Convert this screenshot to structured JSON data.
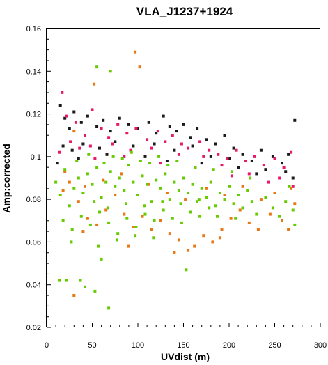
{
  "chart_data": {
    "type": "scatter",
    "title": "VLA_J1237+1924",
    "xlabel": "UVdist (m)",
    "ylabel": "Amp:corrected",
    "xlim": [
      0,
      300
    ],
    "ylim": [
      0.02,
      0.16
    ],
    "xticks": [
      0,
      50,
      100,
      150,
      200,
      250,
      300
    ],
    "yticks": [
      0.02,
      0.04,
      0.06,
      0.08,
      0.1,
      0.12,
      0.14,
      0.16
    ],
    "grid": false,
    "legend": "none",
    "series": [
      {
        "color": "#1a1a1a",
        "points": [
          [
            15,
            0.124
          ],
          [
            20,
            0.118
          ],
          [
            25,
            0.113
          ],
          [
            30,
            0.121
          ],
          [
            38,
            0.116
          ],
          [
            45,
            0.119
          ],
          [
            55,
            0.114
          ],
          [
            62,
            0.117
          ],
          [
            70,
            0.112
          ],
          [
            80,
            0.118
          ],
          [
            90,
            0.115
          ],
          [
            100,
            0.113
          ],
          [
            112,
            0.116
          ],
          [
            120,
            0.111
          ],
          [
            128,
            0.119
          ],
          [
            135,
            0.114
          ],
          [
            142,
            0.112
          ],
          [
            150,
            0.115
          ],
          [
            158,
            0.109
          ],
          [
            165,
            0.113
          ],
          [
            175,
            0.108
          ],
          [
            185,
            0.106
          ],
          [
            195,
            0.11
          ],
          [
            205,
            0.104
          ],
          [
            215,
            0.101
          ],
          [
            225,
            0.098
          ],
          [
            235,
            0.103
          ],
          [
            248,
            0.1
          ],
          [
            258,
            0.097
          ],
          [
            265,
            0.101
          ],
          [
            272,
            0.117
          ],
          [
            18,
            0.105
          ],
          [
            28,
            0.103
          ],
          [
            40,
            0.106
          ],
          [
            58,
            0.104
          ],
          [
            75,
            0.107
          ],
          [
            95,
            0.105
          ],
          [
            118,
            0.106
          ],
          [
            140,
            0.103
          ],
          [
            160,
            0.105
          ],
          [
            180,
            0.1
          ],
          [
            200,
            0.099
          ],
          [
            240,
            0.094
          ],
          [
            262,
            0.093
          ],
          [
            270,
            0.09
          ],
          [
            12,
            0.097
          ],
          [
            35,
            0.099
          ],
          [
            66,
            0.101
          ],
          [
            108,
            0.1
          ],
          [
            132,
            0.098
          ],
          [
            170,
            0.097
          ],
          [
            210,
            0.095
          ],
          [
            230,
            0.092
          ]
        ]
      },
      {
        "color": "#e6196a",
        "points": [
          [
            17,
            0.13
          ],
          [
            22,
            0.119
          ],
          [
            32,
            0.116
          ],
          [
            42,
            0.11
          ],
          [
            50,
            0.122
          ],
          [
            60,
            0.113
          ],
          [
            68,
            0.109
          ],
          [
            78,
            0.115
          ],
          [
            88,
            0.111
          ],
          [
            98,
            0.113
          ],
          [
            110,
            0.108
          ],
          [
            122,
            0.112
          ],
          [
            130,
            0.107
          ],
          [
            138,
            0.11
          ],
          [
            148,
            0.106
          ],
          [
            155,
            0.104
          ],
          [
            168,
            0.107
          ],
          [
            178,
            0.103
          ],
          [
            188,
            0.101
          ],
          [
            198,
            0.099
          ],
          [
            208,
            0.103
          ],
          [
            218,
            0.098
          ],
          [
            228,
            0.1
          ],
          [
            238,
            0.096
          ],
          [
            250,
            0.099
          ],
          [
            260,
            0.095
          ],
          [
            268,
            0.102
          ],
          [
            14,
            0.102
          ],
          [
            26,
            0.107
          ],
          [
            36,
            0.104
          ],
          [
            48,
            0.105
          ],
          [
            72,
            0.106
          ],
          [
            92,
            0.103
          ],
          [
            115,
            0.104
          ],
          [
            145,
            0.101
          ],
          [
            172,
            0.1
          ],
          [
            192,
            0.096
          ],
          [
            222,
            0.092
          ],
          [
            255,
            0.09
          ],
          [
            270,
            0.086
          ],
          [
            53,
            0.099
          ],
          [
            85,
            0.1
          ],
          [
            125,
            0.097
          ],
          [
            163,
            0.095
          ],
          [
            203,
            0.091
          ],
          [
            243,
            0.088
          ]
        ]
      },
      {
        "color": "#e87814",
        "points": [
          [
            97,
            0.149
          ],
          [
            102,
            0.142
          ],
          [
            52,
            0.134
          ],
          [
            30,
            0.112
          ],
          [
            20,
            0.093
          ],
          [
            25,
            0.088
          ],
          [
            35,
            0.079
          ],
          [
            45,
            0.071
          ],
          [
            55,
            0.068
          ],
          [
            65,
            0.075
          ],
          [
            75,
            0.082
          ],
          [
            85,
            0.073
          ],
          [
            95,
            0.067
          ],
          [
            105,
            0.072
          ],
          [
            115,
            0.066
          ],
          [
            125,
            0.07
          ],
          [
            135,
            0.064
          ],
          [
            145,
            0.061
          ],
          [
            155,
            0.056
          ],
          [
            162,
            0.058
          ],
          [
            172,
            0.063
          ],
          [
            182,
            0.06
          ],
          [
            192,
            0.066
          ],
          [
            202,
            0.071
          ],
          [
            212,
            0.075
          ],
          [
            222,
            0.069
          ],
          [
            232,
            0.066
          ],
          [
            245,
            0.073
          ],
          [
            258,
            0.07
          ],
          [
            265,
            0.066
          ],
          [
            272,
            0.078
          ],
          [
            30,
            0.035
          ],
          [
            18,
            0.084
          ],
          [
            42,
            0.086
          ],
          [
            62,
            0.089
          ],
          [
            82,
            0.092
          ],
          [
            112,
            0.087
          ],
          [
            132,
            0.083
          ],
          [
            152,
            0.08
          ],
          [
            175,
            0.085
          ],
          [
            195,
            0.082
          ],
          [
            215,
            0.086
          ],
          [
            235,
            0.08
          ],
          [
            250,
            0.083
          ],
          [
            268,
            0.085
          ],
          [
            40,
            0.065
          ],
          [
            90,
            0.058
          ],
          [
            140,
            0.055
          ],
          [
            190,
            0.062
          ]
        ]
      },
      {
        "color": "#66cc00",
        "points": [
          [
            55,
            0.142
          ],
          [
            70,
            0.14
          ],
          [
            14,
            0.042
          ],
          [
            22,
            0.042
          ],
          [
            37,
            0.042
          ],
          [
            42,
            0.039
          ],
          [
            53,
            0.037
          ],
          [
            68,
            0.029
          ],
          [
            60,
            0.052
          ],
          [
            153,
            0.047
          ],
          [
            10,
            0.088
          ],
          [
            15,
            0.082
          ],
          [
            20,
            0.094
          ],
          [
            25,
            0.077
          ],
          [
            30,
            0.085
          ],
          [
            35,
            0.09
          ],
          [
            40,
            0.083
          ],
          [
            45,
            0.092
          ],
          [
            50,
            0.087
          ],
          [
            55,
            0.095
          ],
          [
            60,
            0.081
          ],
          [
            65,
            0.088
          ],
          [
            70,
            0.093
          ],
          [
            75,
            0.086
          ],
          [
            80,
            0.09
          ],
          [
            85,
            0.084
          ],
          [
            90,
            0.096
          ],
          [
            95,
            0.088
          ],
          [
            100,
            0.082
          ],
          [
            105,
            0.091
          ],
          [
            110,
            0.087
          ],
          [
            115,
            0.079
          ],
          [
            120,
            0.089
          ],
          [
            125,
            0.085
          ],
          [
            130,
            0.092
          ],
          [
            135,
            0.08
          ],
          [
            140,
            0.088
          ],
          [
            145,
            0.084
          ],
          [
            150,
            0.09
          ],
          [
            155,
            0.083
          ],
          [
            160,
            0.087
          ],
          [
            165,
            0.079
          ],
          [
            170,
            0.085
          ],
          [
            175,
            0.081
          ],
          [
            180,
            0.088
          ],
          [
            185,
            0.077
          ],
          [
            190,
            0.083
          ],
          [
            195,
            0.08
          ],
          [
            200,
            0.086
          ],
          [
            205,
            0.078
          ],
          [
            210,
            0.082
          ],
          [
            215,
            0.076
          ],
          [
            220,
            0.084
          ],
          [
            225,
            0.079
          ],
          [
            230,
            0.073
          ],
          [
            240,
            0.081
          ],
          [
            248,
            0.076
          ],
          [
            255,
            0.072
          ],
          [
            262,
            0.079
          ],
          [
            270,
            0.075
          ],
          [
            272,
            0.068
          ],
          [
            18,
            0.07
          ],
          [
            28,
            0.066
          ],
          [
            38,
            0.072
          ],
          [
            48,
            0.068
          ],
          [
            58,
            0.074
          ],
          [
            68,
            0.069
          ],
          [
            78,
            0.064
          ],
          [
            88,
            0.071
          ],
          [
            98,
            0.067
          ],
          [
            108,
            0.073
          ],
          [
            118,
            0.07
          ],
          [
            128,
            0.075
          ],
          [
            138,
            0.071
          ],
          [
            148,
            0.069
          ],
          [
            158,
            0.074
          ],
          [
            168,
            0.072
          ],
          [
            178,
            0.076
          ],
          [
            33,
            0.098
          ],
          [
            46,
            0.101
          ],
          [
            63,
            0.097
          ],
          [
            73,
            0.1
          ],
          [
            83,
            0.099
          ],
          [
            93,
            0.102
          ],
          [
            103,
            0.098
          ],
          [
            113,
            0.097
          ],
          [
            123,
            0.1
          ],
          [
            133,
            0.096
          ],
          [
            143,
            0.098
          ],
          [
            163,
            0.095
          ],
          [
            183,
            0.094
          ],
          [
            203,
            0.093
          ],
          [
            223,
            0.09
          ],
          [
            266,
            0.086
          ],
          [
            52,
            0.079
          ],
          [
            67,
            0.076
          ],
          [
            87,
            0.078
          ],
          [
            107,
            0.077
          ],
          [
            127,
            0.079
          ],
          [
            147,
            0.078
          ],
          [
            167,
            0.08
          ],
          [
            187,
            0.072
          ],
          [
            207,
            0.071
          ],
          [
            27,
            0.06
          ],
          [
            57,
            0.058
          ],
          [
            77,
            0.061
          ],
          [
            97,
            0.063
          ],
          [
            117,
            0.062
          ]
        ]
      }
    ]
  }
}
